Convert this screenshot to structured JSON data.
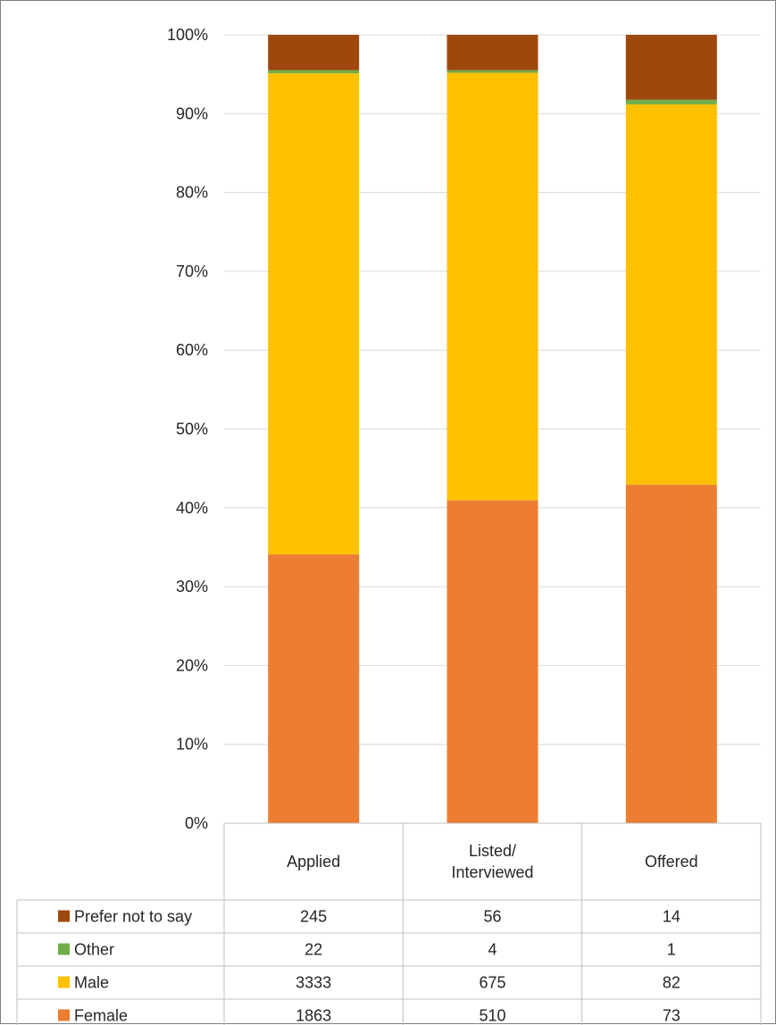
{
  "chart_data": {
    "type": "bar",
    "stacked": true,
    "normalized": true,
    "categories": [
      [
        "Applied"
      ],
      [
        "Listed/",
        "Interviewed"
      ],
      [
        "Offered"
      ]
    ],
    "series": [
      {
        "name": "Female",
        "values": [
          1863,
          510,
          73
        ],
        "color": "#ED7D31"
      },
      {
        "name": "Male",
        "values": [
          3333,
          675,
          82
        ],
        "color": "#FFC000"
      },
      {
        "name": "Other",
        "values": [
          22,
          4,
          1
        ],
        "color": "#70AD47"
      },
      {
        "name": "Prefer not to say",
        "values": [
          245,
          56,
          14
        ],
        "color": "#9E480E"
      }
    ],
    "y_ticks": [
      "0%",
      "10%",
      "20%",
      "30%",
      "40%",
      "50%",
      "60%",
      "70%",
      "80%",
      "90%",
      "100%"
    ],
    "ylim": [
      0,
      100
    ],
    "grid": true,
    "data_table": true,
    "legend_placement": "data-table-keys"
  }
}
